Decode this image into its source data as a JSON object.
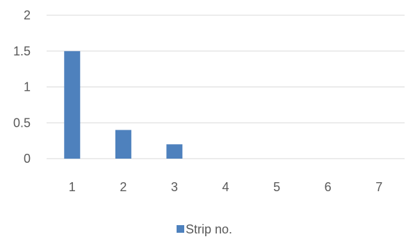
{
  "chart_data": {
    "type": "bar",
    "categories": [
      "1",
      "2",
      "3",
      "4",
      "5",
      "6",
      "7"
    ],
    "series": [
      {
        "name": "Strip no.",
        "values": [
          1.5,
          0.4,
          0.2,
          0,
          0,
          0,
          0
        ]
      }
    ],
    "yticks": [
      "0",
      "0.5",
      "1",
      "1.5",
      "2"
    ],
    "ylim": [
      0,
      2
    ],
    "grid": true,
    "legend_position": "bottom",
    "title": "",
    "xlabel": "",
    "ylabel": "",
    "colors": {
      "bar": "#4e81bd",
      "grid": "#d9d9d9",
      "axis": "#d9d9d9",
      "text": "#595959"
    }
  }
}
